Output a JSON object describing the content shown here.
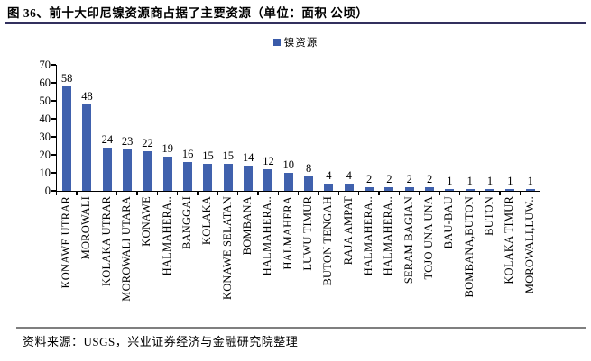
{
  "header": {
    "title": "图 36、前十大印尼镍资源商占据了主要资源（单位：面积 公顷）"
  },
  "footer": {
    "source": "资料来源：USGS，兴业证券经济与金融研究院整理"
  },
  "colors": {
    "bar": "#4061AD",
    "legend_swatch": "#3A5BA9",
    "title_underline": "#32305E",
    "divider": "#7F7F7F",
    "axis": "#000000"
  },
  "chart_data": {
    "type": "bar",
    "title": "",
    "legend": [
      "镍资源"
    ],
    "legend_position": "top-center",
    "categories": [
      "KONAWE UTRAR",
      "MOROWALI",
      "KOLAKA UTRAR",
      "MOROWALI UTARA",
      "KONAWE",
      "HALMAHERA..",
      "BANGGAI",
      "KOLAKA",
      "KONAWE SELATAN",
      "BOMBANA",
      "HALMAHERA..",
      "HALMAHERA",
      "LUWU TIMUR",
      "BUTON TENGAH",
      "RAJA AMPAT",
      "HALMAHERA..",
      "HALMAHERA..",
      "SERAM BAGIAN",
      "TOJO UNA UNA",
      "BAU-BAU",
      "BOMBANA,BUTON",
      "BUTON",
      "KOLAKA TIMUR",
      "MOROWALI,LUW.."
    ],
    "values": [
      58,
      48,
      24,
      23,
      22,
      19,
      16,
      15,
      15,
      14,
      12,
      10,
      8,
      4,
      4,
      2,
      2,
      2,
      2,
      1,
      1,
      1,
      1,
      1
    ],
    "data_labels": true,
    "xlabel": "",
    "ylabel": "",
    "ylim": [
      0,
      70
    ],
    "yticks": [
      0,
      10,
      20,
      30,
      40,
      50,
      60,
      70
    ],
    "grid": false
  }
}
